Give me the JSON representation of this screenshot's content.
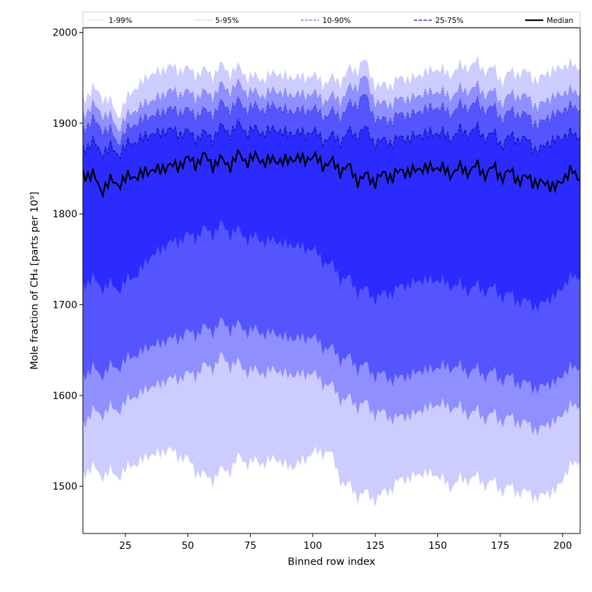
{
  "chart_data": {
    "type": "area",
    "xlabel": "Binned row index",
    "ylabel": "Mole fraction of CH₄ [parts per 10⁹]",
    "xlim": [
      8,
      207
    ],
    "ylim": [
      1448,
      2005
    ],
    "xticks": [
      25,
      50,
      75,
      100,
      125,
      150,
      175,
      200
    ],
    "yticks": [
      1500,
      1600,
      1700,
      1800,
      1900,
      2000
    ],
    "legend_position": "top (spanning full width, above plot)",
    "legend": [
      "1-99%",
      "5-95%",
      "10-90%",
      "25-75%",
      "Median"
    ],
    "band_colors": {
      "1-99%": "#ccccff",
      "5-95%": "#8f8fff",
      "10-90%": "#5555ff",
      "25-75%": "#2b2bff"
    },
    "line_colors": {
      "1-99%": "#ccccff",
      "5-95%": "#7777ee",
      "10-90%": "#4444cc",
      "25-75%": "#1111aa",
      "Median": "#000000"
    },
    "x": [
      8,
      15,
      22,
      29,
      36,
      43,
      50,
      57,
      64,
      71,
      78,
      85,
      92,
      99,
      106,
      113,
      120,
      127,
      134,
      141,
      148,
      155,
      162,
      169,
      176,
      183,
      190,
      197,
      204,
      207
    ],
    "series": [
      {
        "name": "1-99%",
        "lower": [
          1520,
          1515,
          1512,
          1525,
          1535,
          1540,
          1528,
          1508,
          1515,
          1530,
          1525,
          1530,
          1520,
          1535,
          1540,
          1500,
          1490,
          1488,
          1505,
          1512,
          1515,
          1500,
          1510,
          1505,
          1498,
          1495,
          1488,
          1495,
          1525,
          1528
        ],
        "upper": [
          1932,
          1935,
          1910,
          1940,
          1955,
          1962,
          1958,
          1955,
          1960,
          1958,
          1948,
          1955,
          1950,
          1952,
          1945,
          1952,
          1968,
          1938,
          1948,
          1950,
          1960,
          1955,
          1965,
          1962,
          1950,
          1958,
          1948,
          1960,
          1965,
          1960
        ]
      },
      {
        "name": "5-95%",
        "lower": [
          1575,
          1582,
          1585,
          1600,
          1610,
          1618,
          1622,
          1630,
          1640,
          1632,
          1625,
          1628,
          1622,
          1625,
          1612,
          1595,
          1590,
          1580,
          1575,
          1580,
          1590,
          1588,
          1582,
          1578,
          1575,
          1572,
          1562,
          1572,
          1590,
          1588
        ]
      },
      {
        "name": "5-95%",
        "upper": [
          1915,
          1915,
          1895,
          1915,
          1925,
          1935,
          1932,
          1930,
          1938,
          1940,
          1930,
          1935,
          1930,
          1932,
          1925,
          1930,
          1950,
          1918,
          1925,
          1928,
          1935,
          1930,
          1938,
          1935,
          1925,
          1932,
          1918,
          1930,
          1935,
          1932
        ]
      },
      {
        "name": "10-90%",
        "lower": [
          1628,
          1625,
          1632,
          1645,
          1655,
          1662,
          1668,
          1672,
          1678,
          1675,
          1670,
          1668,
          1662,
          1665,
          1652,
          1640,
          1632,
          1622,
          1618,
          1625,
          1630,
          1632,
          1628,
          1625,
          1620,
          1615,
          1608,
          1615,
          1632,
          1630
        ],
        "upper": [
          1900,
          1898,
          1880,
          1900,
          1908,
          1915,
          1912,
          1910,
          1918,
          1920,
          1915,
          1918,
          1912,
          1915,
          1908,
          1912,
          1930,
          1900,
          1908,
          1910,
          1918,
          1912,
          1920,
          1918,
          1908,
          1912,
          1898,
          1910,
          1918,
          1915
        ]
      },
      {
        "name": "25-75%",
        "lower": [
          1728,
          1722,
          1718,
          1732,
          1755,
          1768,
          1775,
          1780,
          1785,
          1778,
          1772,
          1770,
          1765,
          1762,
          1745,
          1728,
          1715,
          1708,
          1718,
          1725,
          1728,
          1722,
          1718,
          1718,
          1712,
          1705,
          1698,
          1710,
          1732,
          1730
        ],
        "upper": [
          1878,
          1872,
          1868,
          1880,
          1888,
          1892,
          1888,
          1885,
          1892,
          1895,
          1890,
          1892,
          1888,
          1890,
          1882,
          1885,
          1892,
          1878,
          1882,
          1885,
          1890,
          1885,
          1892,
          1888,
          1880,
          1885,
          1870,
          1882,
          1888,
          1885
        ]
      },
      {
        "name": "Median",
        "values": [
          1850,
          1830,
          1835,
          1842,
          1848,
          1852,
          1858,
          1860,
          1855,
          1862,
          1860,
          1858,
          1860,
          1862,
          1855,
          1850,
          1838,
          1840,
          1845,
          1848,
          1852,
          1846,
          1850,
          1848,
          1845,
          1840,
          1835,
          1830,
          1848,
          1838
        ]
      }
    ]
  }
}
